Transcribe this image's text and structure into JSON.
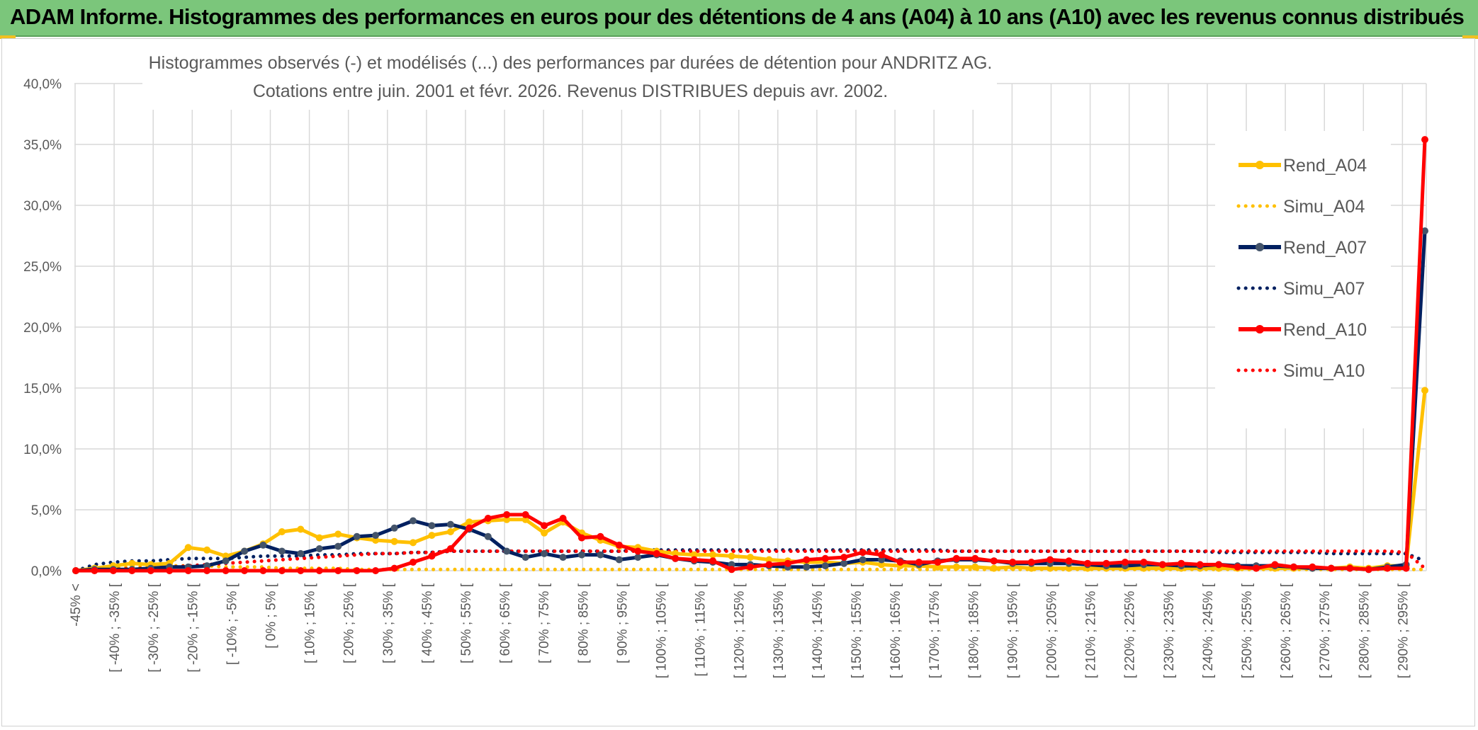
{
  "banner": {
    "title": "ADAM Informe. Histogrammes des performances en euros pour des détentions de 4 ans (A04) à 10 ans (A10) avec les revenus connus distribués"
  },
  "chart_data": {
    "type": "line",
    "title_line1": "Histogrammes observés (-) et modélisés (...) des performances par durées de détention pour ANDRITZ AG.",
    "title_line2": "Cotations entre juin. 2001 et févr. 2026. Revenus DISTRIBUES depuis avr. 2002.",
    "ylim": [
      0,
      40
    ],
    "yticks": [
      "0,0%",
      "5,0%",
      "10,0%",
      "15,0%",
      "20,0%",
      "25,0%",
      "30,0%",
      "35,0%",
      "40,0%"
    ],
    "x_labels": [
      "-45% <",
      "[ -40% ; -35% [",
      "[ -30% ; -25% [",
      "[ -20% ; -15% [",
      "[ -10% ; -5% [",
      "[ 0% ; 5% [",
      "[ 10% ; 15% [",
      "[ 20% ; 25% [",
      "[ 30% ; 35% [",
      "[ 40% ; 45% [",
      "[ 50% ; 55% [",
      "[ 60% ; 65% [",
      "[ 70% ; 75% [",
      "[ 80% ; 85% [",
      "[ 90% ; 95% [",
      "[ 100% ; 105% [",
      "[ 110% ; 115% [",
      "[ 120% ; 125% [",
      "[ 130% ; 135% [",
      "[ 140% ; 145% [",
      "[ 150% ; 155% [",
      "[ 160% ; 165% [",
      "[ 170% ; 175% [",
      "[ 180% ; 185% [",
      "[ 190% ; 195% [",
      "[ 200% ; 205% [",
      "[ 210% ; 215% [",
      "[ 220% ; 225% [",
      "[ 230% ; 235% [",
      "[ 240% ; 245% [",
      "[ 250% ; 255% [",
      "[ 260% ; 265% [",
      "[ 270% ; 275% [",
      "[ 280% ; 285% [",
      "[ 290% ; 295% ["
    ],
    "legend_position": "right",
    "grid": true,
    "series": [
      {
        "name": "Rend_A04",
        "style": "solid",
        "color": "#ffc000",
        "values": [
          0,
          0.2,
          0.4,
          0.6,
          0.5,
          0.6,
          1.9,
          1.7,
          1.2,
          1.6,
          2.2,
          3.2,
          3.4,
          2.7,
          3.0,
          2.7,
          2.5,
          2.4,
          2.3,
          2.9,
          3.2,
          4.0,
          4.1,
          4.2,
          4.2,
          3.1,
          4.0,
          3.1,
          2.5,
          2.0,
          1.9,
          1.6,
          1.4,
          1.3,
          1.3,
          1.2,
          1.1,
          0.9,
          0.8,
          0.7,
          0.7,
          0.6,
          0.7,
          0.5,
          0.4,
          0.4,
          0.3,
          0.3,
          0.3,
          0.2,
          0.3,
          0.2,
          0.2,
          0.2,
          0.2,
          0.2,
          0.2,
          0.2,
          0.2,
          0.2,
          0.2,
          0.2,
          0.2,
          0.2,
          0.2,
          0.2,
          0.2,
          0.2,
          0.3,
          0.2,
          0.4,
          0.4,
          14.8
        ]
      },
      {
        "name": "Simu_A04",
        "style": "dotted",
        "color": "#ffc000",
        "values": [
          0,
          0.1,
          0.2,
          0.3,
          0.3,
          0.4,
          0.4,
          0.4,
          0.3,
          0.3,
          0.3,
          0.2,
          0.2,
          0.2,
          0.2,
          0.1,
          0.1,
          0.1,
          0.1,
          0.1,
          0.1,
          0.1,
          0.1,
          0.1,
          0.1,
          0.1,
          0.1,
          0.1,
          0.1,
          0.1,
          0.1,
          0.1,
          0.1,
          0.1,
          0.1,
          0.1,
          0.1,
          0.1,
          0.1,
          0.1,
          0.1,
          0.1,
          0.1,
          0.1,
          0.1,
          0.1,
          0.1,
          0.1,
          0.1,
          0.1,
          0.1,
          0.1,
          0.1,
          0.1,
          0.1,
          0.1,
          0.1,
          0.1,
          0.1,
          0.1,
          0.1,
          0.1,
          0.1,
          0.1,
          0.1,
          0.1,
          0.1,
          0.1,
          0.1,
          0.1,
          0.1,
          0.1,
          0.1
        ]
      },
      {
        "name": "Rend_A07",
        "style": "solid",
        "color": "#002060",
        "values": [
          0,
          0.1,
          0.1,
          0.1,
          0.2,
          0.3,
          0.3,
          0.4,
          0.8,
          1.6,
          2.1,
          1.6,
          1.4,
          1.8,
          2.0,
          2.8,
          2.9,
          3.5,
          4.1,
          3.7,
          3.8,
          3.4,
          2.8,
          1.6,
          1.1,
          1.4,
          1.1,
          1.3,
          1.3,
          0.9,
          1.1,
          1.3,
          1.0,
          0.8,
          0.7,
          0.5,
          0.5,
          0.4,
          0.3,
          0.3,
          0.4,
          0.6,
          0.9,
          0.9,
          0.8,
          0.5,
          0.8,
          0.9,
          0.9,
          0.8,
          0.6,
          0.6,
          0.6,
          0.6,
          0.5,
          0.4,
          0.4,
          0.5,
          0.5,
          0.4,
          0.4,
          0.5,
          0.4,
          0.4,
          0.4,
          0.3,
          0.2,
          0.2,
          0.2,
          0.1,
          0.3,
          0.5,
          27.9
        ]
      },
      {
        "name": "Simu_A07",
        "style": "dotted",
        "color": "#002060",
        "values": [
          0,
          0.5,
          0.7,
          0.8,
          0.8,
          0.9,
          1.0,
          1.0,
          1.0,
          1.1,
          1.2,
          1.2,
          1.2,
          1.3,
          1.3,
          1.4,
          1.4,
          1.4,
          1.5,
          1.5,
          1.6,
          1.6,
          1.6,
          1.6,
          1.6,
          1.6,
          1.6,
          1.6,
          1.6,
          1.6,
          1.7,
          1.7,
          1.7,
          1.7,
          1.7,
          1.7,
          1.7,
          1.7,
          1.7,
          1.7,
          1.7,
          1.7,
          1.7,
          1.7,
          1.7,
          1.7,
          1.7,
          1.6,
          1.6,
          1.6,
          1.6,
          1.6,
          1.6,
          1.6,
          1.6,
          1.6,
          1.6,
          1.6,
          1.6,
          1.6,
          1.6,
          1.5,
          1.5,
          1.5,
          1.5,
          1.5,
          1.5,
          1.4,
          1.4,
          1.4,
          1.4,
          1.4,
          0.8
        ]
      },
      {
        "name": "Rend_A10",
        "style": "solid",
        "color": "#ff0000",
        "values": [
          0,
          0,
          0,
          0,
          0,
          0,
          0,
          0,
          0,
          0,
          0,
          0,
          0,
          0,
          0,
          0,
          0,
          0.2,
          0.7,
          1.2,
          1.8,
          3.5,
          4.3,
          4.6,
          4.6,
          3.7,
          4.3,
          2.7,
          2.8,
          2.1,
          1.6,
          1.4,
          1.0,
          0.9,
          0.8,
          0.1,
          0.3,
          0.5,
          0.6,
          0.9,
          1.0,
          1.1,
          1.5,
          1.3,
          0.7,
          0.7,
          0.7,
          1.0,
          1.0,
          0.8,
          0.7,
          0.7,
          0.9,
          0.8,
          0.6,
          0.6,
          0.7,
          0.7,
          0.5,
          0.6,
          0.5,
          0.5,
          0.3,
          0.2,
          0.5,
          0.3,
          0.3,
          0.2,
          0.2,
          0.1,
          0.2,
          0.2,
          35.4
        ]
      },
      {
        "name": "Simu_A10",
        "style": "dotted",
        "color": "#ff0000",
        "values": [
          0,
          0.1,
          0.1,
          0.2,
          0.2,
          0.3,
          0.4,
          0.5,
          0.6,
          0.7,
          0.8,
          0.9,
          1.0,
          1.1,
          1.2,
          1.3,
          1.4,
          1.4,
          1.5,
          1.5,
          1.6,
          1.6,
          1.6,
          1.6,
          1.6,
          1.6,
          1.6,
          1.6,
          1.6,
          1.6,
          1.6,
          1.6,
          1.6,
          1.6,
          1.6,
          1.6,
          1.6,
          1.6,
          1.6,
          1.6,
          1.6,
          1.6,
          1.6,
          1.6,
          1.6,
          1.6,
          1.6,
          1.6,
          1.6,
          1.6,
          1.6,
          1.6,
          1.6,
          1.6,
          1.6,
          1.6,
          1.6,
          1.6,
          1.6,
          1.6,
          1.6,
          1.6,
          1.6,
          1.6,
          1.6,
          1.6,
          1.6,
          1.6,
          1.6,
          1.6,
          1.6,
          1.5,
          0.2
        ]
      }
    ]
  }
}
